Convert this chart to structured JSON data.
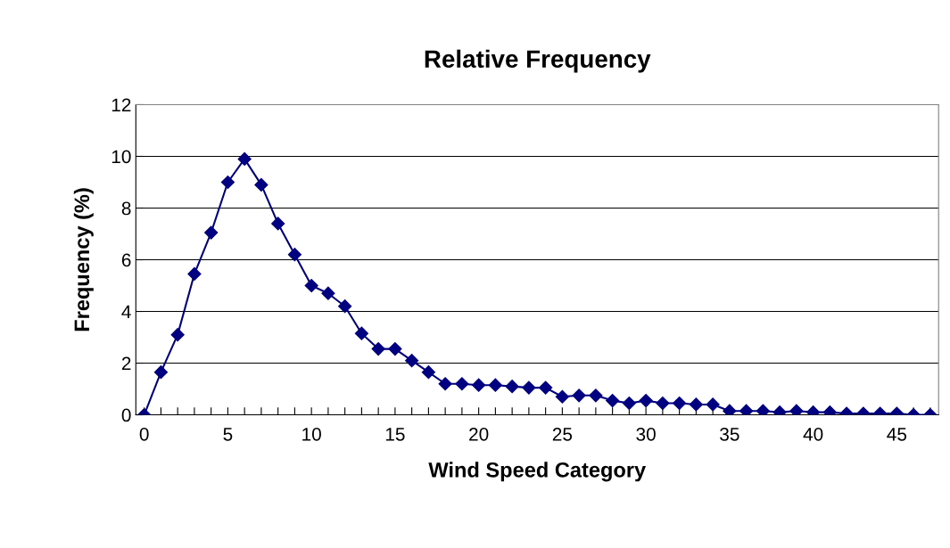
{
  "chart_data": {
    "type": "line",
    "title": "Relative Frequency",
    "xlabel": "Wind Speed Category",
    "ylabel": "Frequency (%)",
    "x": [
      0,
      1,
      2,
      3,
      4,
      5,
      6,
      7,
      8,
      9,
      10,
      11,
      12,
      13,
      14,
      15,
      16,
      17,
      18,
      19,
      20,
      21,
      22,
      23,
      24,
      25,
      26,
      27,
      28,
      29,
      30,
      31,
      32,
      33,
      34,
      35,
      36,
      37,
      38,
      39,
      40,
      41,
      42,
      43,
      44,
      45,
      46,
      47
    ],
    "series": [
      {
        "color": "#000080",
        "values": [
          0,
          1.65,
          3.1,
          5.45,
          7.05,
          9.0,
          9.9,
          8.9,
          7.4,
          6.2,
          5.0,
          4.7,
          4.2,
          3.15,
          2.55,
          2.55,
          2.1,
          1.65,
          1.2,
          1.2,
          1.15,
          1.15,
          1.1,
          1.05,
          1.05,
          0.7,
          0.75,
          0.75,
          0.55,
          0.45,
          0.55,
          0.45,
          0.45,
          0.4,
          0.4,
          0.15,
          0.15,
          0.15,
          0.1,
          0.15,
          0.1,
          0.1,
          0.05,
          0.05,
          0.05,
          0.05,
          0,
          0
        ]
      }
    ],
    "xlim": [
      -0.5,
      47.5
    ],
    "xticks": [
      0,
      {
        "value": 1,
        "label": null
      },
      {
        "value": 2,
        "label": null
      },
      {
        "value": 3,
        "label": null
      },
      {
        "value": 4,
        "label": null
      },
      5,
      {
        "value": 6,
        "label": null
      },
      {
        "value": 7,
        "label": null
      },
      {
        "value": 8,
        "label": null
      },
      {
        "value": 9,
        "label": null
      },
      10,
      {
        "value": 11,
        "label": null
      },
      {
        "value": 12,
        "label": null
      },
      {
        "value": 13,
        "label": null
      },
      {
        "value": 14,
        "label": null
      },
      15,
      {
        "value": 16,
        "label": null
      },
      {
        "value": 17,
        "label": null
      },
      {
        "value": 18,
        "label": null
      },
      {
        "value": 19,
        "label": null
      },
      20,
      {
        "value": 21,
        "label": null
      },
      {
        "value": 22,
        "label": null
      },
      {
        "value": 23,
        "label": null
      },
      {
        "value": 24,
        "label": null
      },
      25,
      {
        "value": 26,
        "label": null
      },
      {
        "value": 27,
        "label": null
      },
      {
        "value": 28,
        "label": null
      },
      {
        "value": 29,
        "label": null
      },
      30,
      {
        "value": 31,
        "label": null
      },
      {
        "value": 32,
        "label": null
      },
      {
        "value": 33,
        "label": null
      },
      {
        "value": 34,
        "label": null
      },
      35,
      {
        "value": 36,
        "label": null
      },
      {
        "value": 37,
        "label": null
      },
      {
        "value": 38,
        "label": null
      },
      {
        "value": 39,
        "label": null
      },
      40,
      {
        "value": 41,
        "label": null
      },
      {
        "value": 42,
        "label": null
      },
      {
        "value": 43,
        "label": null
      },
      {
        "value": 44,
        "label": null
      },
      45,
      {
        "value": 46,
        "label": null
      },
      {
        "value": 47,
        "label": null
      }
    ],
    "ylim": [
      0,
      12
    ],
    "yticks": [
      0,
      2,
      4,
      6,
      8,
      10,
      12
    ],
    "grid": "y",
    "marker": "diamond",
    "line_style": "solid"
  }
}
